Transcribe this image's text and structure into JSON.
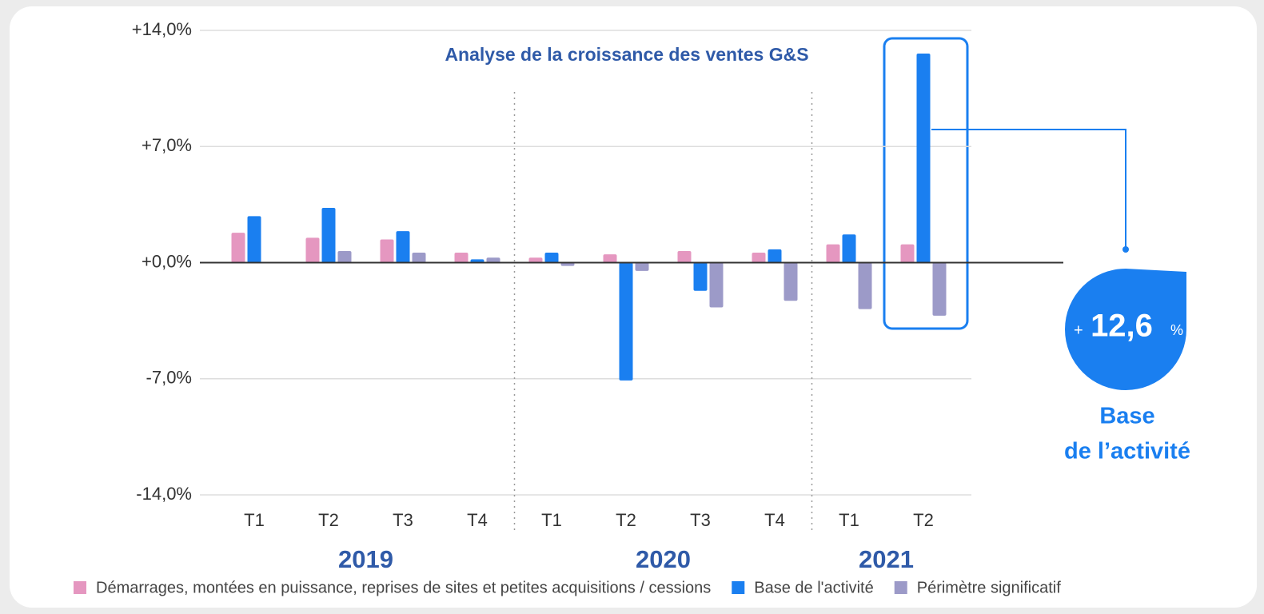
{
  "chart_data": {
    "type": "bar",
    "title": "Analyse de la croissance des ventes G&S",
    "categories": [
      "T1",
      "T2",
      "T3",
      "T4",
      "T1",
      "T2",
      "T3",
      "T4",
      "T1",
      "T2"
    ],
    "groups": [
      "2019",
      "2020",
      "2021"
    ],
    "series": [
      {
        "name": "Démarrages, montées en puissance, reprises de sites et petites acquisitions / cessions",
        "color": "#e597c0",
        "values": [
          1.8,
          1.5,
          1.4,
          0.6,
          0.3,
          0.5,
          0.7,
          0.6,
          1.1,
          1.1
        ]
      },
      {
        "name": "Base de l'activité",
        "color": "#1a7ff0",
        "values": [
          2.8,
          3.3,
          1.9,
          0.2,
          0.6,
          -7.1,
          -1.7,
          0.8,
          1.7,
          12.6
        ]
      },
      {
        "name": "Périmètre significatif",
        "color": "#9c9ac8",
        "values": [
          null,
          0.7,
          0.6,
          0.3,
          -0.2,
          -0.5,
          -2.7,
          -2.3,
          -2.8,
          -3.2
        ]
      }
    ],
    "ylim": [
      -14,
      14
    ],
    "yticks": [
      {
        "value": -14,
        "label": "-14,0%"
      },
      {
        "value": -7,
        "label": "-7,0%"
      },
      {
        "value": 0,
        "label": "+0,0%"
      },
      {
        "value": 7,
        "label": "+7,0%"
      },
      {
        "value": 14,
        "label": "+14,0%"
      }
    ],
    "grid": true,
    "annotation": {
      "prefix": "+",
      "value": "12,6",
      "unit": "%",
      "label_lines": [
        "Base",
        "de l’activité"
      ]
    }
  }
}
